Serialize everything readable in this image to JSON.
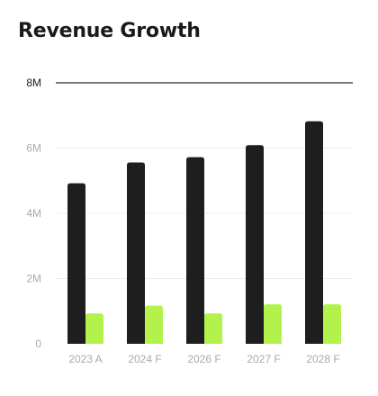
{
  "chart_data": {
    "type": "bar",
    "title": "Revenue Growth",
    "categories": [
      "2023 A",
      "2024 F",
      "2026 F",
      "2027 F",
      "2028 F"
    ],
    "series": [
      {
        "values": [
          4.92,
          5.56,
          5.72,
          6.09,
          6.82
        ],
        "color": "#1e1e1e"
      },
      {
        "values": [
          0.93,
          1.17,
          0.93,
          1.21,
          1.21
        ],
        "color": "#b2f24a"
      }
    ],
    "ylim": [
      0,
      8
    ],
    "yticks": [
      {
        "value": 0,
        "label": "0"
      },
      {
        "value": 2,
        "label": "2M"
      },
      {
        "value": 4,
        "label": "4M"
      },
      {
        "value": 6,
        "label": "6M"
      },
      {
        "value": 8,
        "label": "8M"
      }
    ],
    "xlabel": "",
    "ylabel": "",
    "grid": true,
    "legend": "none"
  }
}
